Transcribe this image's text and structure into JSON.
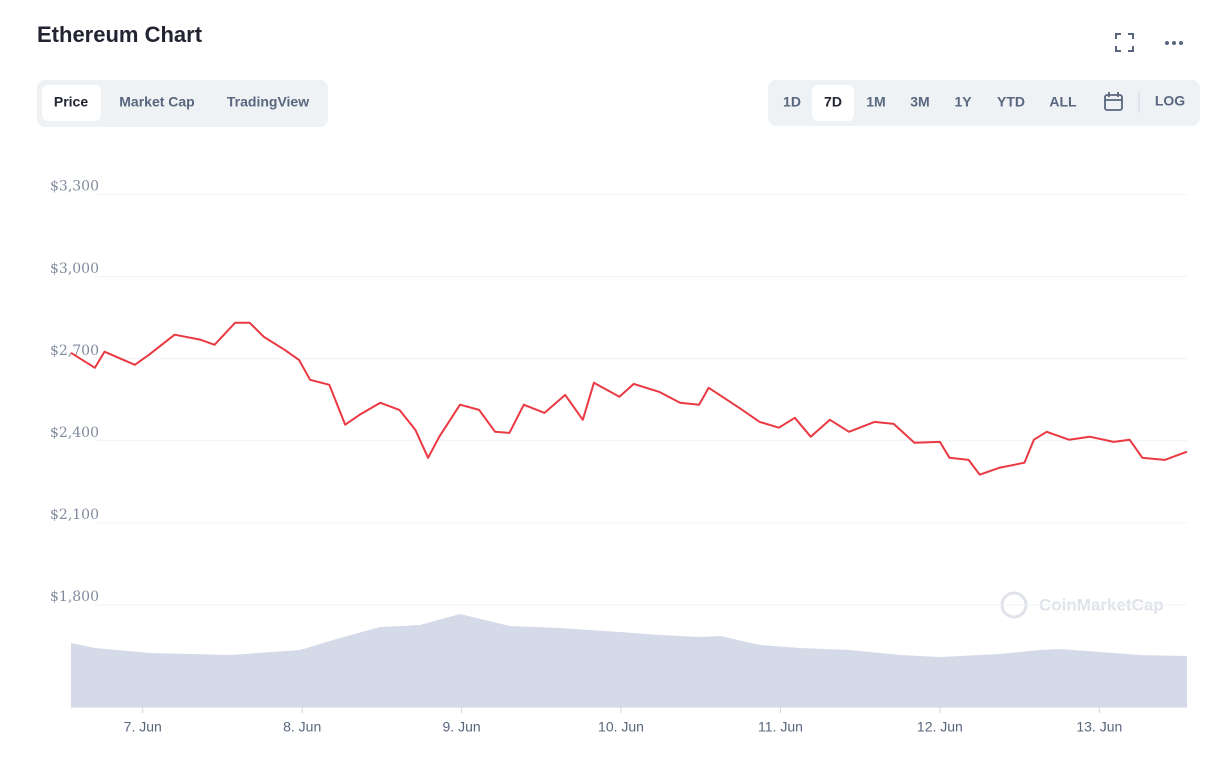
{
  "chart_data": {
    "type": "line",
    "title": "Ethereum Chart",
    "color": "#ea3943",
    "x": [
      6.55,
      6.7,
      6.76,
      6.95,
      7.04,
      7.2,
      7.36,
      7.45,
      7.58,
      7.67,
      7.76,
      7.89,
      7.98,
      8.05,
      8.17,
      8.27,
      8.36,
      8.49,
      8.61,
      8.71,
      8.79,
      8.86,
      8.99,
      9.11,
      9.21,
      9.3,
      9.39,
      9.52,
      9.65,
      9.76,
      9.83,
      9.99,
      10.08,
      10.24,
      10.37,
      10.49,
      10.55,
      10.74,
      10.87,
      10.99,
      11.09,
      11.19,
      11.31,
      11.43,
      11.59,
      11.71,
      11.84,
      12.0,
      12.06,
      12.18,
      12.25,
      12.37,
      12.53,
      12.59,
      12.67,
      12.81,
      12.94,
      13.09,
      13.19,
      13.27,
      13.41,
      13.55
    ],
    "values": [
      2722,
      2667,
      2726,
      2678,
      2715,
      2788,
      2770,
      2751,
      2832,
      2832,
      2780,
      2733,
      2696,
      2623,
      2605,
      2459,
      2495,
      2539,
      2513,
      2440,
      2338,
      2415,
      2532,
      2513,
      2433,
      2429,
      2532,
      2502,
      2568,
      2477,
      2612,
      2561,
      2608,
      2579,
      2539,
      2532,
      2594,
      2521,
      2469,
      2448,
      2484,
      2415,
      2477,
      2433,
      2469,
      2462,
      2393,
      2396,
      2338,
      2330,
      2276,
      2301,
      2320,
      2404,
      2433,
      2404,
      2415,
      2396,
      2404,
      2338,
      2330,
      2360
    ],
    "xlim": [
      6.55,
      13.55
    ],
    "xticks": [
      {
        "value": 7,
        "label": "7. Jun"
      },
      {
        "value": 8,
        "label": "8. Jun"
      },
      {
        "value": 9,
        "label": "9. Jun"
      },
      {
        "value": 10,
        "label": "10. Jun"
      },
      {
        "value": 11,
        "label": "11. Jun"
      },
      {
        "value": 12,
        "label": "12. Jun"
      },
      {
        "value": 13,
        "label": "13. Jun"
      }
    ],
    "ylim": [
      1430,
      3460
    ],
    "yticks": [
      {
        "value": 1800,
        "label": "$1,800"
      },
      {
        "value": 2100,
        "label": "$2,100"
      },
      {
        "value": 2400,
        "label": "$2,400"
      },
      {
        "value": 2700,
        "label": "$2,700"
      },
      {
        "value": 3000,
        "label": "$3,000"
      },
      {
        "value": 3300,
        "label": "$3,300"
      }
    ],
    "grid": true
  },
  "tabs": [
    "Price",
    "Market Cap",
    "TradingView"
  ],
  "ranges": [
    "1D",
    "7D",
    "1M",
    "3M",
    "1Y",
    "YTD",
    "ALL"
  ],
  "log": "LOG",
  "watermark": "CoinMarketCap"
}
